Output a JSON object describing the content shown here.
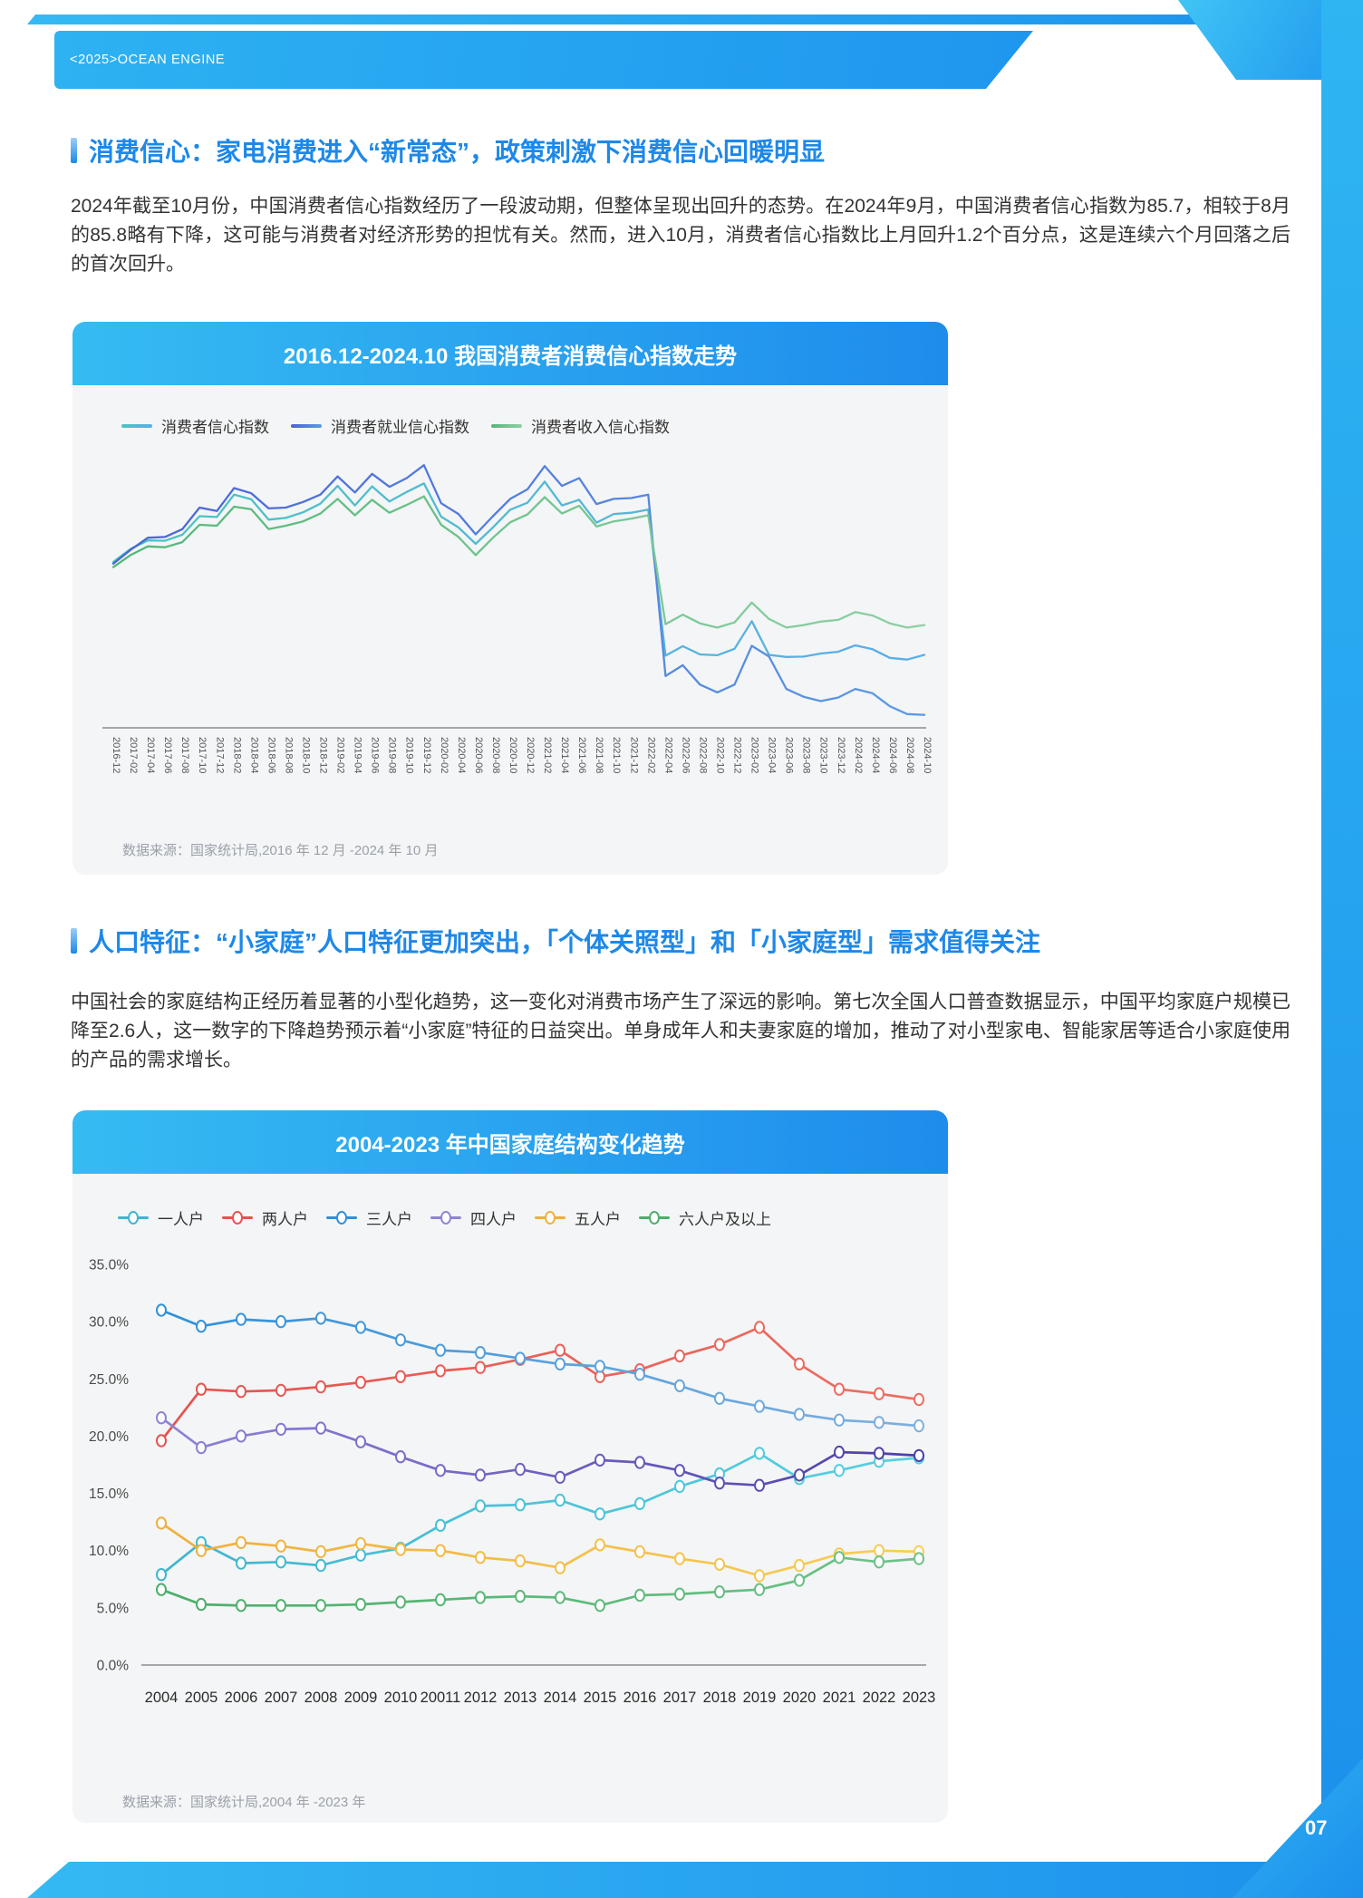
{
  "page": {
    "brand": "<2025>OCEAN ENGINE",
    "page_number": "07"
  },
  "sections": [
    {
      "title": "消费信心：家电消费进入“新常态”，政策刺激下消费信心回暖明显",
      "body": "2024年截至10月份，中国消费者信心指数经历了一段波动期，但整体呈现出回升的态势。在2024年9月，中国消费者信心指数为85.7，相较于8月的85.8略有下降，这可能与消费者对经济形势的担忧有关。然而，进入10月，消费者信心指数比上月回升1.2个百分点，这是连续六个月回落之后的首次回升。"
    },
    {
      "title": "人口特征：“小家庭”人口特征更加突出，「个体关照型」和「小家庭型」需求值得关注",
      "body": "中国社会的家庭结构正经历着显著的小型化趋势，这一变化对消费市场产生了深远的影响。第七次全国人口普查数据显示，中国平均家庭户规模已降至2.6人，这一数字的下降趋势预示着“小家庭”特征的日益突出。单身成年人和夫妻家庭的增加，推动了对小型家电、智能家居等适合小家庭使用的产品的需求增长。"
    }
  ],
  "chart_data": [
    {
      "type": "line",
      "title": "2016.12-2024.10 我国消费者消费信心指数走势",
      "source": "数据来源：国家统计局,2016 年 12 月 -2024 年 10 月",
      "grid": false,
      "legend_position": "top-left",
      "ylim": [
        70,
        134
      ],
      "x": [
        "2016-12",
        "2017-02",
        "2017-04",
        "2017-06",
        "2017-08",
        "2017-10",
        "2017-12",
        "2018-02",
        "2018-04",
        "2018-06",
        "2018-08",
        "2018-10",
        "2018-12",
        "2019-02",
        "2019-04",
        "2019-06",
        "2019-08",
        "2019-10",
        "2019-12",
        "2020-02",
        "2020-04",
        "2020-06",
        "2020-08",
        "2020-10",
        "2020-12",
        "2021-02",
        "2021-04",
        "2021-06",
        "2021-08",
        "2021-10",
        "2021-12",
        "2022-02",
        "2022-04",
        "2022-06",
        "2022-08",
        "2022-10",
        "2022-12",
        "2023-02",
        "2023-04",
        "2023-06",
        "2023-08",
        "2023-10",
        "2023-12",
        "2024-02",
        "2024-04",
        "2024-06",
        "2024-08",
        "2024-10"
      ],
      "series": [
        {
          "name": "消费者信心指数",
          "color": "#4AC5C0",
          "color2": "#5AADE8",
          "values": [
            108.4,
            111.4,
            113.4,
            113.3,
            114.7,
            119.0,
            118.8,
            124.0,
            122.9,
            118.2,
            118.6,
            119.9,
            121.9,
            126.0,
            121.5,
            125.9,
            122.4,
            124.6,
            126.6,
            118.9,
            116.4,
            112.6,
            116.4,
            120.5,
            122.1,
            127.0,
            121.5,
            122.8,
            117.5,
            119.5,
            119.8,
            120.5,
            86.7,
            88.9,
            87.0,
            86.8,
            88.3,
            94.7,
            86.9,
            86.4,
            86.5,
            87.2,
            87.6,
            89.1,
            88.2,
            86.2,
            85.8,
            86.9
          ]
        },
        {
          "name": "消费者就业信心指数",
          "color": "#4A63D8",
          "color2": "#5C9BE4",
          "values": [
            108.0,
            111.2,
            114.0,
            114.2,
            116.0,
            121.0,
            120.2,
            125.5,
            124.3,
            120.8,
            121.0,
            122.3,
            124.0,
            128.2,
            124.5,
            128.8,
            125.8,
            127.8,
            130.8,
            122.0,
            119.5,
            114.8,
            119.0,
            123.0,
            125.2,
            130.6,
            126.0,
            127.8,
            121.8,
            123.0,
            123.2,
            124.0,
            82.0,
            84.5,
            80.0,
            78.2,
            80.0,
            89.0,
            86.5,
            79.0,
            77.2,
            76.2,
            77.0,
            79.0,
            78.0,
            75.0,
            73.2,
            73.0
          ]
        },
        {
          "name": "消费者收入信心指数",
          "color": "#52B878",
          "color2": "#8FD0A5",
          "values": [
            107.2,
            110.0,
            112.0,
            111.8,
            113.0,
            117.0,
            116.8,
            121.2,
            120.6,
            116.0,
            116.8,
            117.8,
            119.6,
            123.0,
            119.2,
            122.8,
            119.8,
            121.6,
            123.6,
            117.0,
            114.2,
            110.0,
            114.0,
            117.6,
            119.4,
            123.4,
            119.6,
            121.4,
            116.6,
            117.8,
            118.4,
            119.2,
            94.0,
            96.2,
            94.2,
            93.2,
            94.4,
            99.0,
            95.2,
            93.2,
            93.8,
            94.6,
            95.0,
            96.8,
            96.0,
            94.2,
            93.2,
            93.8
          ]
        }
      ]
    },
    {
      "type": "line",
      "title": "2004-2023 年中国家庭结构变化趋势",
      "source": "数据来源：国家统计局,2004 年 -2023 年",
      "grid": false,
      "legend_position": "top-left",
      "markers": "open-circle",
      "unit": "%",
      "ylim": [
        0,
        35
      ],
      "y_ticks": [
        "35.0%",
        "30.0%",
        "25.0%",
        "20.0%",
        "15.0%",
        "10.0%",
        "5.0%",
        "0.0%"
      ],
      "x": [
        "2004",
        "2005",
        "2006",
        "2007",
        "2008",
        "2009",
        "2010",
        "20011",
        "2012",
        "2013",
        "2014",
        "2015",
        "2016",
        "2017",
        "2018",
        "2019",
        "2020",
        "2021",
        "2022",
        "2023"
      ],
      "series": [
        {
          "name": "一人户",
          "color": "#3FB6CF",
          "color2": "#55D0E0",
          "values": [
            7.9,
            10.7,
            8.9,
            9.0,
            8.7,
            9.6,
            10.2,
            12.2,
            13.9,
            14.0,
            14.4,
            13.2,
            14.1,
            15.6,
            16.7,
            18.5,
            16.3,
            17.0,
            17.8,
            18.1
          ]
        },
        {
          "name": "两人户",
          "color": "#E5534E",
          "color2": "#ED6E62",
          "values": [
            19.6,
            24.1,
            23.9,
            24.0,
            24.3,
            24.7,
            25.2,
            25.7,
            26.0,
            26.7,
            27.5,
            25.2,
            25.8,
            27.0,
            28.0,
            29.5,
            26.3,
            24.1,
            23.7,
            23.2
          ]
        },
        {
          "name": "三人户",
          "color": "#2F90D9",
          "color2": "#7FB0E0",
          "values": [
            31.0,
            29.6,
            30.2,
            30.0,
            30.3,
            29.5,
            28.4,
            27.5,
            27.3,
            26.8,
            26.3,
            26.1,
            25.4,
            24.4,
            23.3,
            22.6,
            21.9,
            21.4,
            21.2,
            20.9
          ]
        },
        {
          "name": "四人户",
          "color": "#8C85D8",
          "color2": "#4B40A8",
          "values": [
            21.6,
            19.0,
            20.0,
            20.6,
            20.7,
            19.5,
            18.2,
            17.0,
            16.6,
            17.1,
            16.4,
            17.9,
            17.7,
            17.0,
            15.9,
            15.7,
            16.6,
            18.6,
            18.5,
            18.3
          ]
        },
        {
          "name": "五人户",
          "color": "#EFAF3C",
          "color2": "#F7CE55",
          "values": [
            12.4,
            10.0,
            10.7,
            10.4,
            9.9,
            10.6,
            10.1,
            10.0,
            9.4,
            9.1,
            8.5,
            10.5,
            9.9,
            9.3,
            8.8,
            7.8,
            8.7,
            9.7,
            10.0,
            9.9
          ]
        },
        {
          "name": "六人户及以上",
          "color": "#4CAE6A",
          "color2": "#6CC389",
          "values": [
            6.6,
            5.3,
            5.2,
            5.2,
            5.2,
            5.3,
            5.5,
            5.7,
            5.9,
            6.0,
            5.9,
            5.2,
            6.1,
            6.2,
            6.4,
            6.6,
            7.4,
            9.4,
            9.0,
            9.3
          ]
        }
      ]
    }
  ]
}
